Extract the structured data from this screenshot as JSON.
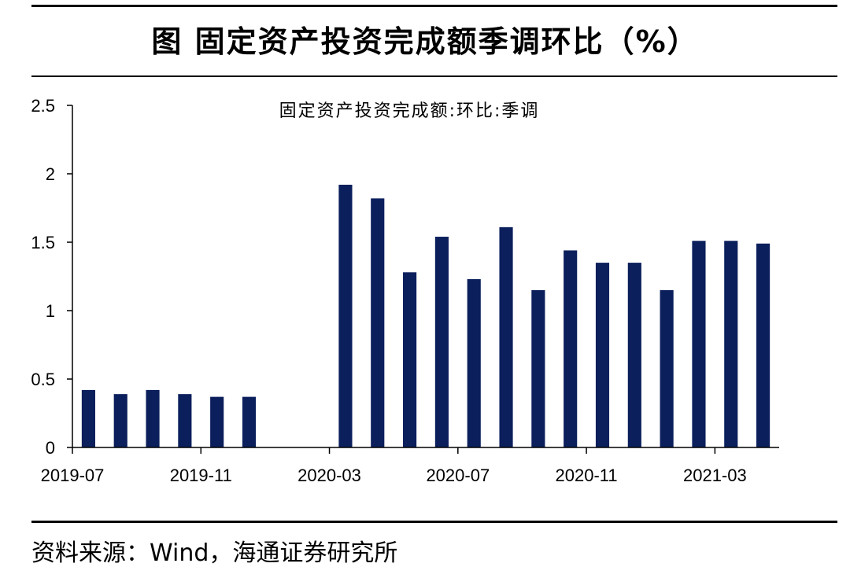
{
  "page": {
    "title": "图  固定资产投资完成额季调环比（%）",
    "source": "资料来源：Wind，海通证券研究所"
  },
  "chart_data": {
    "type": "bar",
    "title": "固定资产投资完成额:环比:季调",
    "xlabel": "",
    "ylabel": "",
    "ylim": [
      0,
      2.5
    ],
    "yticks": [
      "0",
      "0.5",
      "1",
      "1.5",
      "2",
      "2.5"
    ],
    "legend": "none",
    "grid": false,
    "color": "#0b1f5c",
    "x": [
      "2019-07",
      "2019-08",
      "2019-09",
      "2019-10",
      "2019-11",
      "2019-12",
      "2020-01",
      "2020-02",
      "2020-03",
      "2020-04",
      "2020-05",
      "2020-06",
      "2020-07",
      "2020-08",
      "2020-09",
      "2020-10",
      "2020-11",
      "2020-12",
      "2021-01",
      "2021-02",
      "2021-03",
      "2021-04"
    ],
    "values": [
      0.42,
      0.39,
      0.42,
      0.39,
      0.37,
      0.37,
      null,
      null,
      1.92,
      1.82,
      1.28,
      1.54,
      1.23,
      1.61,
      1.15,
      1.44,
      1.35,
      1.35,
      1.15,
      1.51,
      1.51,
      1.49
    ],
    "xtick_labels": [
      "2019-07",
      "2019-11",
      "2020-03",
      "2020-07",
      "2020-11",
      "2021-03"
    ]
  }
}
